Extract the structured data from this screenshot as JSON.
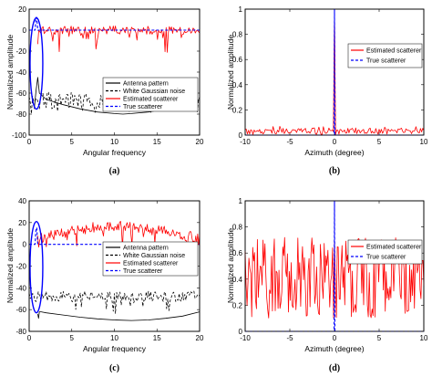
{
  "colors": {
    "estimated": "#ff0000",
    "true_scatterer": "#0000ff",
    "antenna": "#000000",
    "noise": "#000000",
    "ellipse": "#0000ff"
  },
  "chart_data": [
    {
      "panel": "(a)",
      "type": "line",
      "xlabel": "Angular frequency",
      "ylabel": "Normalized amplitude",
      "xlim": [
        0,
        20
      ],
      "ylim": [
        -100,
        20
      ],
      "xticks": [
        0,
        5,
        10,
        15,
        20
      ],
      "yticks": [
        -100,
        -80,
        -60,
        -40,
        -20,
        0,
        20
      ],
      "legend_position": "center-right",
      "legend": [
        "Antenna pattern",
        "White Gaussian noise",
        "Estimated scatterer",
        "True scatterer"
      ],
      "series": [
        {
          "name": "Antenna pattern",
          "style": "solid-black",
          "x": [
            0.6,
            0.8,
            1.0,
            1.2,
            2,
            4,
            6,
            8,
            10,
            11,
            12,
            14,
            16,
            18,
            19,
            19.6,
            20
          ],
          "y": [
            -75,
            -58,
            -45,
            -60,
            -66,
            -71,
            -75,
            -78,
            -79.5,
            -80,
            -79.5,
            -78,
            -75,
            -71,
            -69,
            -67,
            -66
          ]
        },
        {
          "name": "White Gaussian noise",
          "style": "dashed-black",
          "x_range": [
            0,
            20
          ],
          "mean": -67,
          "spread": 8,
          "min": -83
        },
        {
          "name": "Estimated scatterer",
          "style": "solid-red",
          "x_range": [
            1,
            20
          ],
          "mean": 0,
          "spread": 4,
          "dips_to": -22
        },
        {
          "name": "True scatterer",
          "style": "dashed-blue",
          "x": [
            0,
            0.7,
            0.8,
            0.9,
            1.0,
            20
          ],
          "y": [
            0,
            0,
            12,
            12,
            0,
            0
          ]
        }
      ]
    },
    {
      "panel": "(b)",
      "type": "line",
      "xlabel": "Azimuth (degree)",
      "ylabel": "Normalized amplitude",
      "xlim": [
        -10,
        10
      ],
      "ylim": [
        0,
        1
      ],
      "xticks": [
        -10,
        -5,
        0,
        5,
        10
      ],
      "yticks": [
        0,
        0.2,
        0.4,
        0.6,
        0.8,
        1
      ],
      "legend_position": "top-right",
      "legend": [
        "Estimated scatterer",
        "True scatterer"
      ],
      "series": [
        {
          "name": "Estimated scatterer",
          "style": "solid-red",
          "x_range": [
            -10,
            10
          ],
          "baseline": 0.03,
          "peak_x": 0,
          "peak_y": 1,
          "max_noise": 0.07
        },
        {
          "name": "True scatterer",
          "style": "dashed-blue",
          "x": [
            -10,
            -0.05,
            0,
            0.05,
            10
          ],
          "y": [
            0,
            0,
            1,
            0,
            0
          ]
        }
      ]
    },
    {
      "panel": "(c)",
      "type": "line",
      "xlabel": "Angular frequency",
      "ylabel": "Normalized amplitude",
      "xlim": [
        0,
        20
      ],
      "ylim": [
        -80,
        40
      ],
      "xticks": [
        0,
        5,
        10,
        15,
        20
      ],
      "yticks": [
        -80,
        -60,
        -40,
        -20,
        0,
        20,
        40
      ],
      "legend_position": "center-right",
      "legend": [
        "Antenna pattern",
        "White Gaussian noise",
        "Estimated scatterer",
        "True scatterer"
      ],
      "series": [
        {
          "name": "Antenna pattern",
          "style": "solid-black",
          "x": [
            1.0,
            1.1,
            1.2,
            1.4,
            2,
            4,
            6,
            8,
            10,
            12,
            14,
            16,
            18,
            20
          ],
          "y": [
            -64,
            -68,
            -62,
            -62,
            -63,
            -65,
            -67,
            -68.5,
            -69.5,
            -70,
            -69.5,
            -68,
            -66,
            -62
          ]
        },
        {
          "name": "White Gaussian noise",
          "style": "dashed-black",
          "x_range": [
            0,
            20
          ],
          "mean": -48,
          "spread": 5,
          "min": -65
        },
        {
          "name": "Estimated scatterer",
          "style": "solid-red",
          "x_range": [
            1,
            20
          ],
          "envelope": [
            5,
            17,
            5
          ],
          "dips_to": -5
        },
        {
          "name": "True scatterer",
          "style": "dashed-blue",
          "x": [
            0,
            0.7,
            0.8,
            0.9,
            1.0,
            20
          ],
          "y": [
            0,
            0,
            15,
            15,
            0,
            0
          ]
        }
      ]
    },
    {
      "panel": "(d)",
      "type": "line",
      "xlabel": "Azimuth (degree)",
      "ylabel": "Normalized amplitude",
      "xlim": [
        -10,
        10
      ],
      "ylim": [
        0,
        1
      ],
      "xticks": [
        -10,
        -5,
        0,
        5,
        10
      ],
      "yticks": [
        0,
        0.2,
        0.4,
        0.6,
        0.8,
        1
      ],
      "legend_position": "top-right",
      "legend": [
        "Estimated scatterer",
        "True scatterer"
      ],
      "series": [
        {
          "name": "Estimated scatterer",
          "style": "solid-red",
          "x_range": [
            -10,
            10
          ],
          "band": [
            0.1,
            0.72
          ]
        },
        {
          "name": "True scatterer",
          "style": "dashed-blue",
          "x": [
            -10,
            -0.05,
            0,
            0.05,
            10
          ],
          "y": [
            0,
            0,
            1,
            0,
            0
          ]
        }
      ]
    }
  ]
}
